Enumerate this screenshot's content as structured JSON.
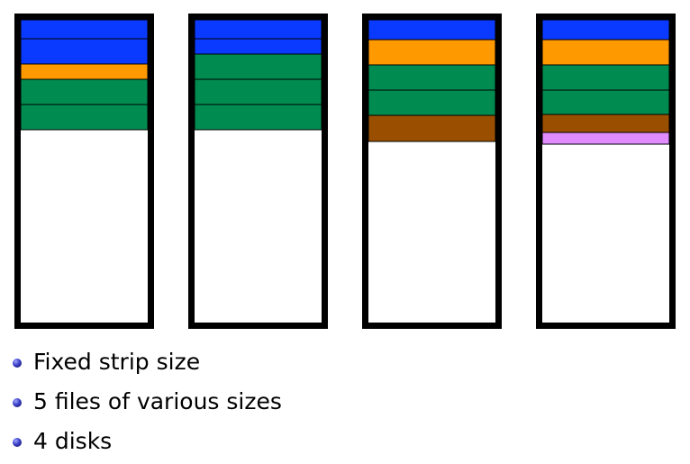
{
  "colors": {
    "blue": "#0a3aff",
    "orange": "#ff9900",
    "green": "#008c50",
    "brown": "#9a4f00",
    "violet": "#e08cff",
    "frame": "#000000"
  },
  "disks": [
    {
      "strips": [
        "blue",
        "blue",
        "orange",
        "green",
        "green"
      ]
    },
    {
      "strips": [
        "blue",
        "blue",
        "green",
        "green",
        "green"
      ]
    },
    {
      "strips": [
        "blue",
        "orange",
        "green",
        "green",
        "brown"
      ]
    },
    {
      "strips": [
        "blue",
        "orange",
        "green",
        "green",
        "brown",
        "violet"
      ]
    }
  ],
  "bullets": [
    {
      "text": "Fixed strip size"
    },
    {
      "text": "5 files of various sizes"
    },
    {
      "text": "4 disks"
    }
  ]
}
